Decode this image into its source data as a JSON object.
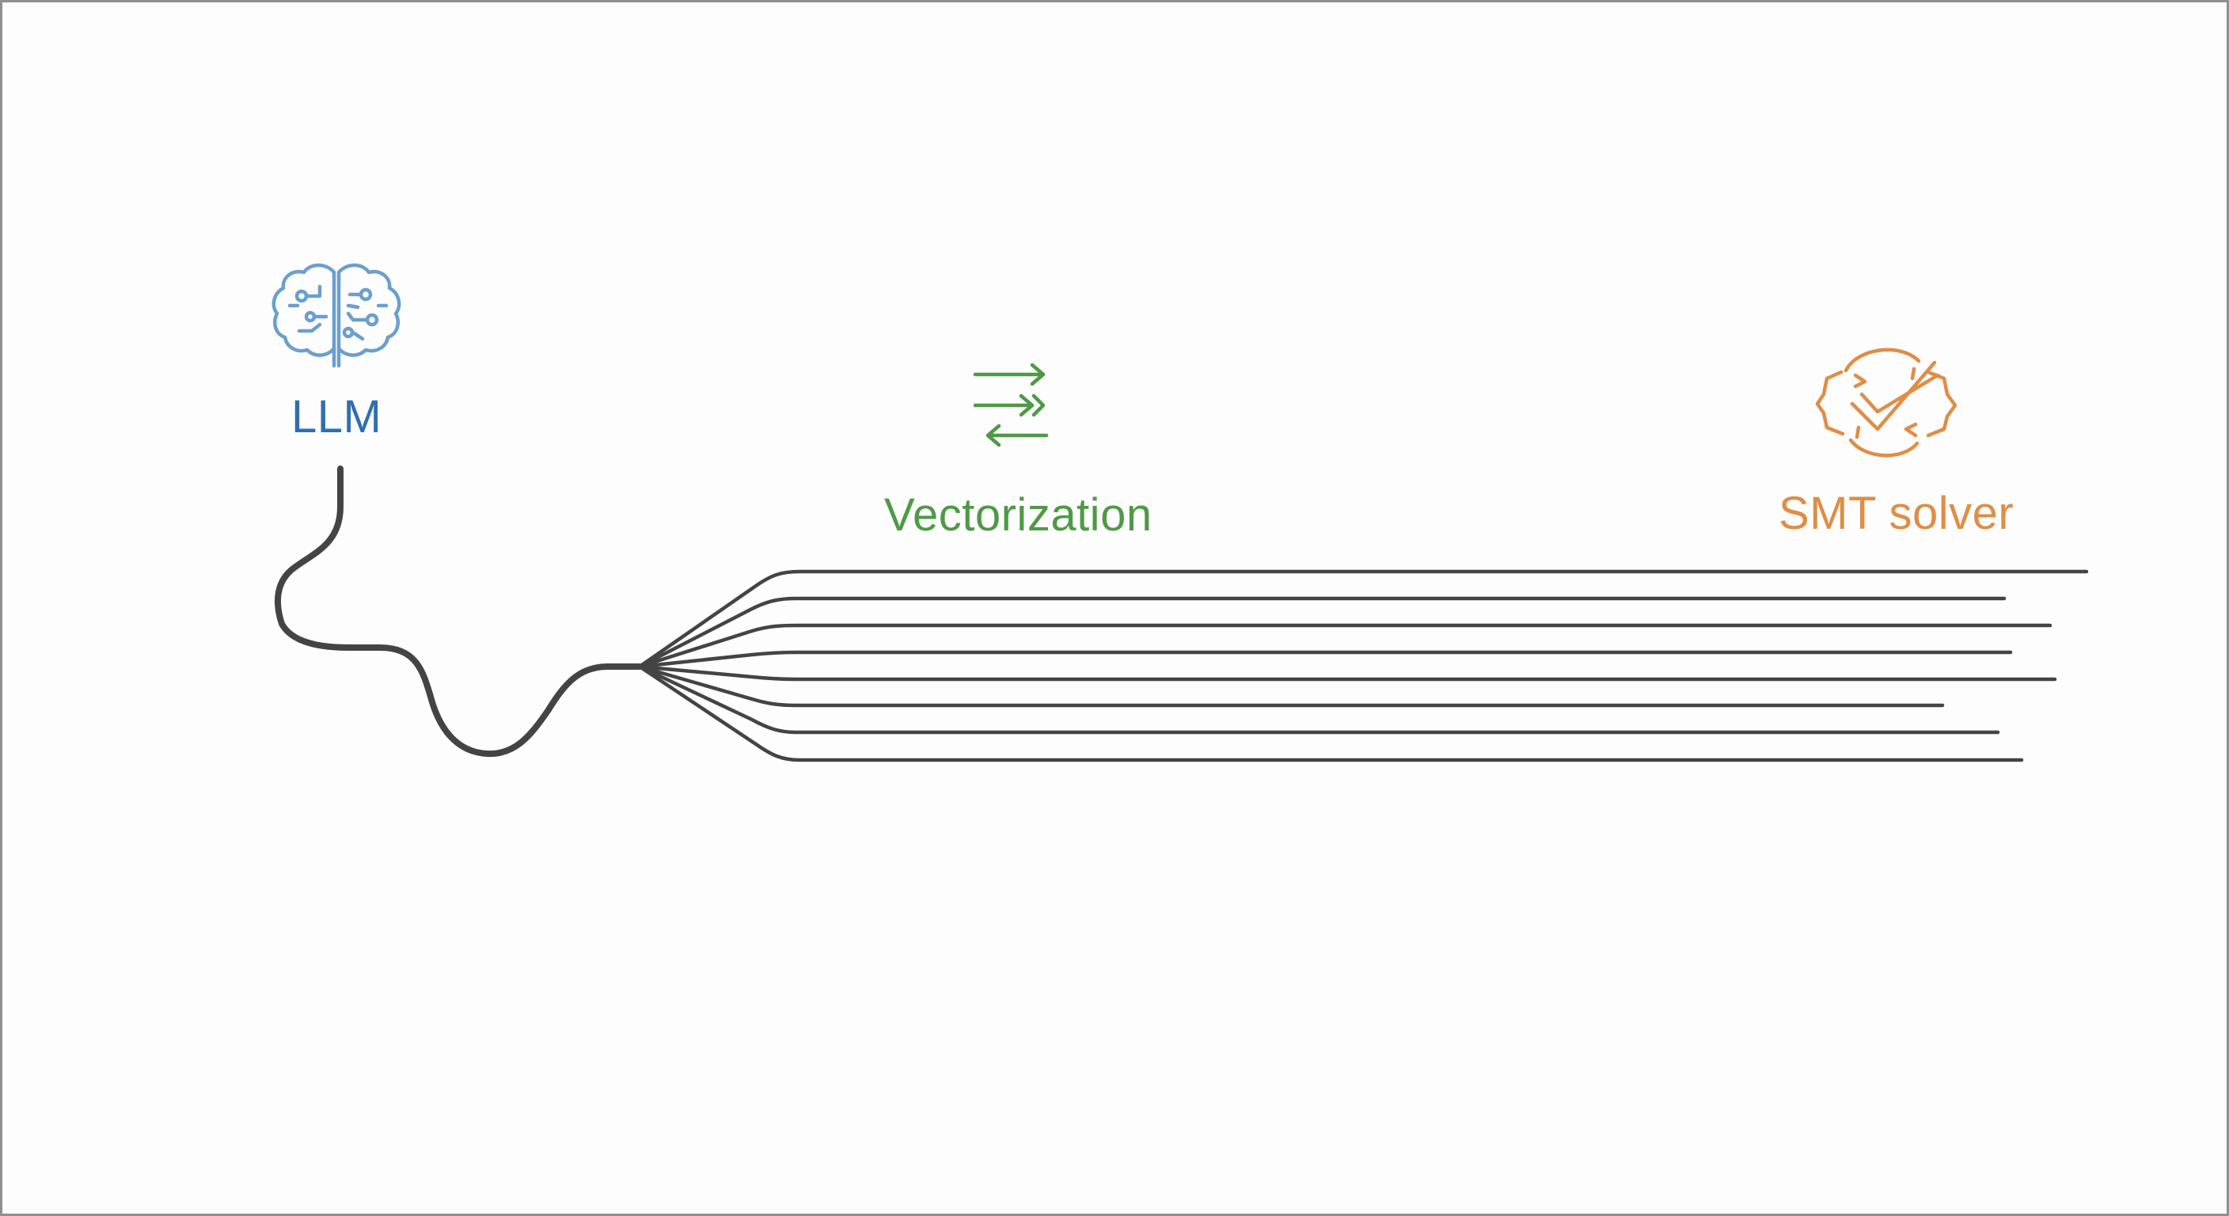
{
  "nodes": [
    {
      "key": "llm",
      "label": "LLM",
      "icon": "brain-icon",
      "color": "#2f6fb0",
      "icon_color": "#6a9fd0"
    },
    {
      "key": "vectorization",
      "label": "Vectorization",
      "icon": "swap-arrows-icon",
      "color": "#4e9a45"
    },
    {
      "key": "smt",
      "label": "SMT solver",
      "icon": "check-cycle-icon",
      "color": "#e08d45"
    }
  ],
  "line_color": "#444444"
}
